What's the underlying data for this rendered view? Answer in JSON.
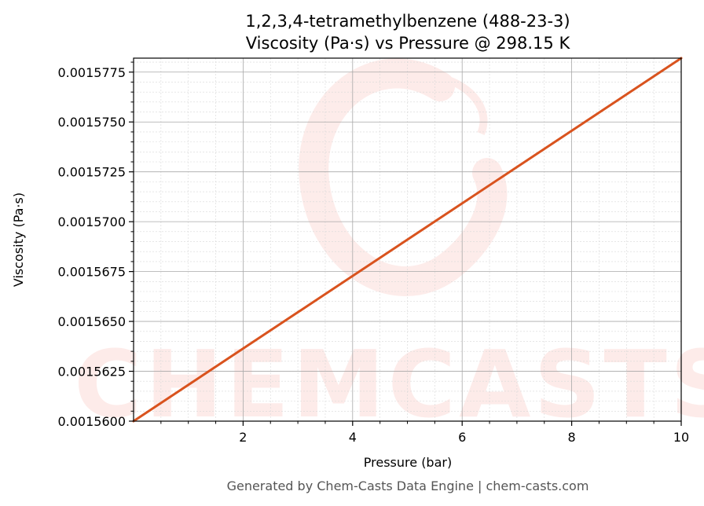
{
  "chart_data": {
    "type": "line",
    "title": "1,2,3,4-tetramethylbenzene (488-23-3)",
    "subtitle": "Viscosity (Pa·s) vs Pressure @ 298.15 K",
    "xlabel": "Pressure (bar)",
    "ylabel": "Viscosity (Pa·s)",
    "xlim": [
      0.0,
      10.0
    ],
    "ylim": [
      0.00156,
      0.0015782
    ],
    "x_ticks": [
      2,
      4,
      6,
      8,
      10
    ],
    "x_tick_labels": [
      "2",
      "4",
      "6",
      "8",
      "10"
    ],
    "y_ticks": [
      0.00156,
      0.0015625,
      0.001565,
      0.0015675,
      0.00157,
      0.0015725,
      0.001575,
      0.0015775
    ],
    "y_tick_labels": [
      "0.0015600",
      "0.0015625",
      "0.0015650",
      "0.0015675",
      "0.0015700",
      "0.0015725",
      "0.0015750",
      "0.0015775"
    ],
    "grid": true,
    "series": [
      {
        "color": "#d9531e",
        "x": [
          0.0,
          10.0
        ],
        "y": [
          0.00156,
          0.0015782
        ]
      }
    ]
  },
  "watermark": "CHEMCASTS",
  "footer": "Generated by Chem-Casts Data Engine | chem-casts.com"
}
